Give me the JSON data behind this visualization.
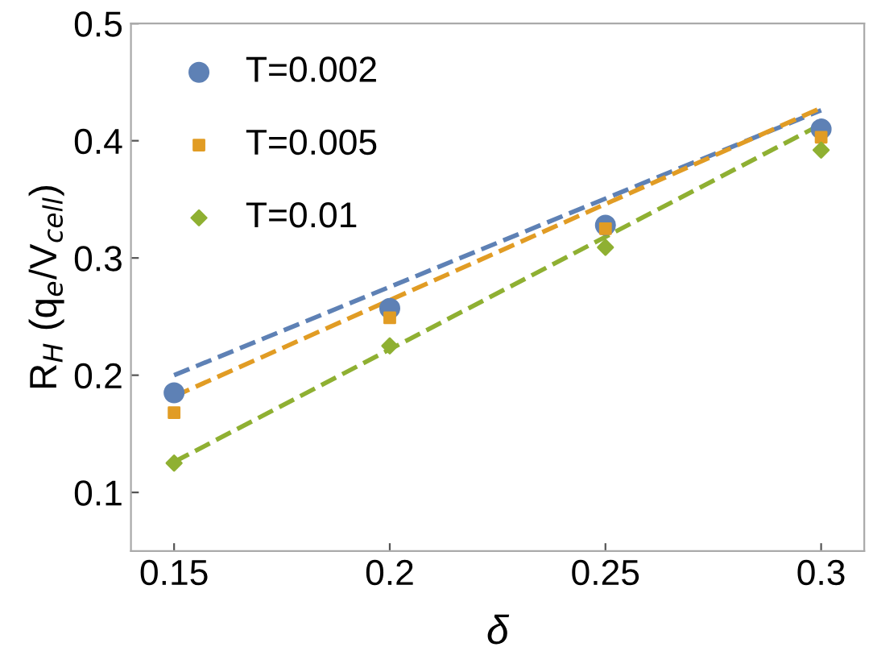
{
  "chart_data": {
    "type": "scatter",
    "xlabel": "δ",
    "ylabel": "R$_{H}$ (q$_{e}$/V$_{cell}$)",
    "xlim": [
      0.14,
      0.31
    ],
    "xticks": [
      0.15,
      0.2,
      0.25,
      0.3
    ],
    "ylim": [
      0.05,
      0.5
    ],
    "yticks": [
      0.1,
      0.2,
      0.3,
      0.4,
      0.5
    ],
    "grid": false,
    "legend": "top left",
    "series": [
      {
        "name": "T=0.002",
        "color": "#5e81b5",
        "marker": "circle",
        "x": [
          0.15,
          0.2,
          0.25,
          0.3
        ],
        "values": [
          0.185,
          0.257,
          0.328,
          0.41
        ]
      },
      {
        "name": "T=0.005",
        "color": "#e19c24",
        "marker": "square",
        "x": [
          0.15,
          0.2,
          0.25,
          0.3
        ],
        "values": [
          0.168,
          0.249,
          0.325,
          0.403
        ]
      },
      {
        "name": "T=0.01",
        "color": "#8fb032",
        "marker": "diamond",
        "x": [
          0.15,
          0.2,
          0.25,
          0.3
        ],
        "values": [
          0.125,
          0.225,
          0.309,
          0.392
        ]
      },
      {
        "type": "line",
        "line_style": "dashed",
        "color": "#5e81b5",
        "x": [
          0.15,
          0.3
        ],
        "values": [
          0.2,
          0.426
        ]
      },
      {
        "type": "line",
        "line_style": "dashed",
        "color": "#e19c24",
        "x": [
          0.15,
          0.3
        ],
        "values": [
          0.182,
          0.428
        ]
      },
      {
        "type": "line",
        "line_style": "dashed",
        "color": "#8fb032",
        "x": [
          0.15,
          0.3
        ],
        "values": [
          0.126,
          0.414
        ]
      }
    ]
  }
}
